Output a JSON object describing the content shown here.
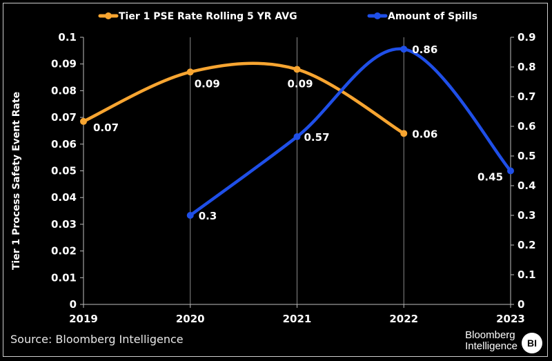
{
  "chart_data": {
    "type": "line",
    "x": [
      "2019",
      "2020",
      "2021",
      "2022",
      "2023"
    ],
    "ylabel": "Tier 1 Process Safety Event Rate",
    "y_left": {
      "ylim": [
        0,
        0.1
      ],
      "ticks": [
        "0",
        "0.01",
        "0.02",
        "0.03",
        "0.04",
        "0.05",
        "0.06",
        "0.07",
        "0.08",
        "0.09",
        "0.1"
      ]
    },
    "y_right": {
      "ylim": [
        0,
        0.9
      ],
      "ticks": [
        "0",
        "0.1",
        "0.2",
        "0.3",
        "0.4",
        "0.5",
        "0.6",
        "0.7",
        "0.8",
        "0.9"
      ]
    },
    "series": [
      {
        "name": "Tier 1 PSE Rate Rolling 5 YR AVG",
        "axis": "left",
        "color": "#F7A531",
        "values": [
          0.0685,
          0.087,
          0.088,
          0.064,
          null
        ],
        "labels": [
          "0.07",
          "0.09",
          "0.09",
          "0.06",
          null
        ]
      },
      {
        "name": "Amount of Spills",
        "axis": "right",
        "color": "#1F4FE8",
        "values": [
          null,
          0.3,
          0.565,
          0.86,
          0.45
        ],
        "labels": [
          null,
          "0.3",
          "0.57",
          "0.86",
          "0.45"
        ]
      }
    ],
    "grid": "vertical",
    "legend_position": "top"
  },
  "legend": {
    "series1": "Tier 1 PSE Rate Rolling 5 YR AVG",
    "series2": "Amount of Spills"
  },
  "footer": {
    "source": "Source: Bloomberg Intelligence",
    "brand_line1": "Bloomberg",
    "brand_line2": "Intelligence",
    "brand_badge": "BI"
  }
}
